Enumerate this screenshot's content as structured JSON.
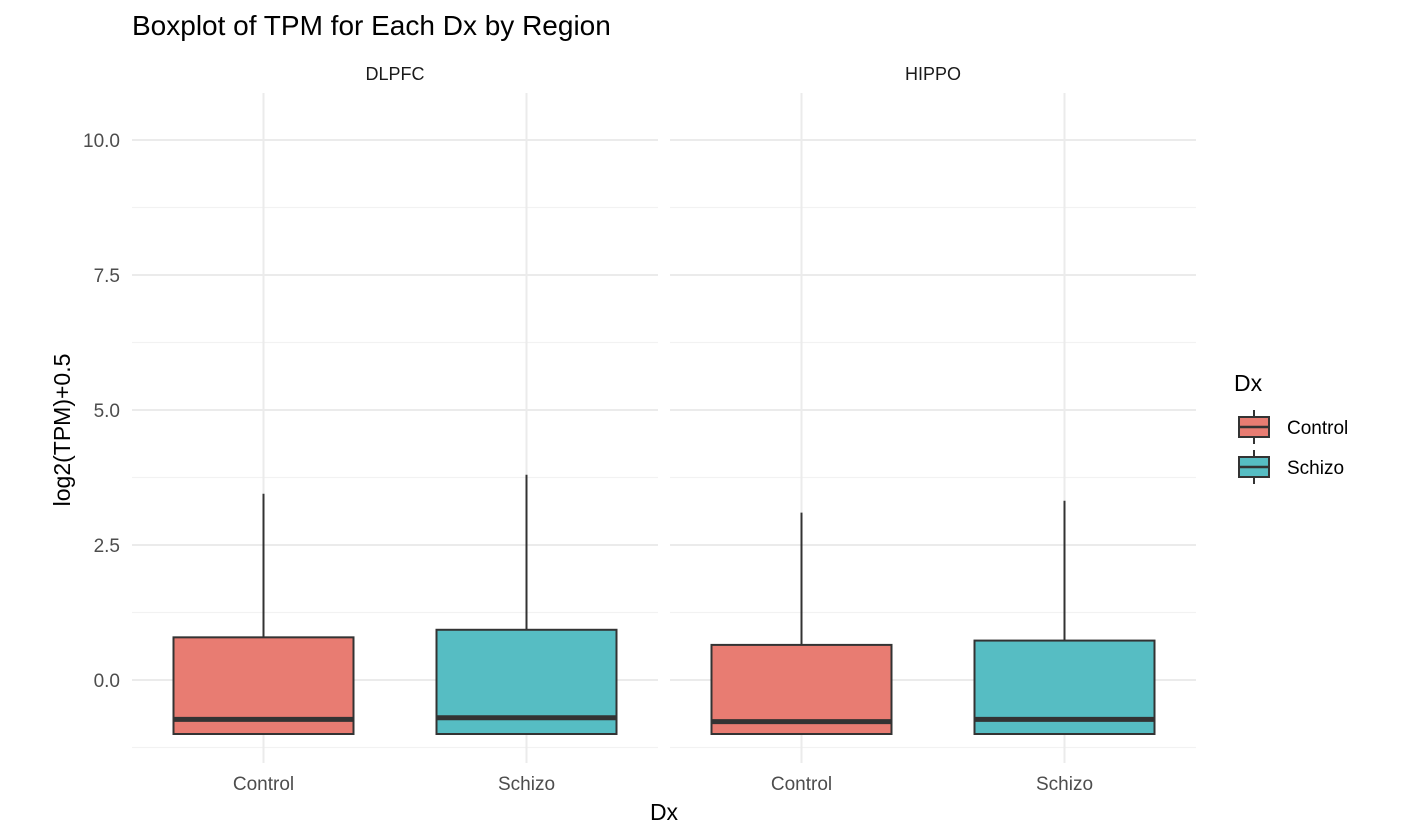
{
  "chart_data": {
    "type": "boxplot",
    "title": "Boxplot of TPM for Each Dx by Region",
    "xlabel": "Dx",
    "ylabel": "log2(TPM)+0.5",
    "ylim": [
      -1.2,
      10.9
    ],
    "y_ticks": [
      0.0,
      2.5,
      5.0,
      7.5,
      10.0
    ],
    "y_tick_labels": [
      "0.0",
      "2.5",
      "5.0",
      "7.5",
      "10.0"
    ],
    "grid": true,
    "legend": {
      "title": "Dx",
      "position": "right",
      "entries": [
        {
          "label": "Control",
          "color": "#E87C72"
        },
        {
          "label": "Schizo",
          "color": "#56BDC3"
        }
      ]
    },
    "categories": [
      "Control",
      "Schizo"
    ],
    "panels": [
      {
        "label": "DLPFC",
        "boxes": [
          {
            "category": "Control",
            "min": -1.0,
            "q1": -1.0,
            "median": -0.73,
            "q3": 0.79,
            "max": 3.45
          },
          {
            "category": "Schizo",
            "min": -1.0,
            "q1": -1.0,
            "median": -0.7,
            "q3": 0.93,
            "max": 3.8
          }
        ]
      },
      {
        "label": "HIPPO",
        "boxes": [
          {
            "category": "Control",
            "min": -1.0,
            "q1": -1.0,
            "median": -0.77,
            "q3": 0.65,
            "max": 3.1
          },
          {
            "category": "Schizo",
            "min": -1.0,
            "q1": -1.0,
            "median": -0.73,
            "q3": 0.73,
            "max": 3.32
          }
        ]
      }
    ]
  }
}
